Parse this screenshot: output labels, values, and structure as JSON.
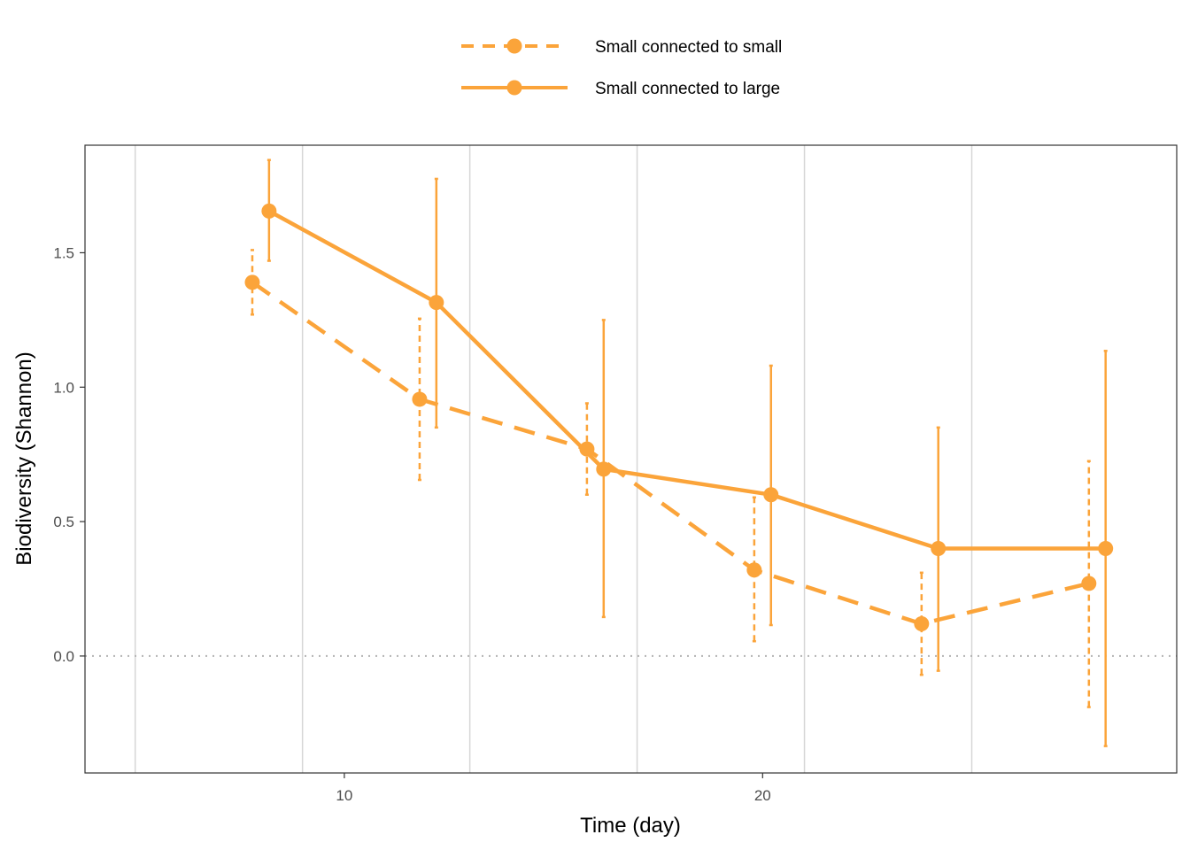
{
  "chart_data": {
    "type": "line",
    "xlabel": "Time (day)",
    "ylabel": "Biodiversity (Shannon)",
    "xlim": [
      3.8,
      29.9
    ],
    "ylim": [
      -0.435,
      1.9
    ],
    "x_ticks": [
      {
        "value": 10,
        "label": "10"
      },
      {
        "value": 20,
        "label": "20"
      }
    ],
    "y_ticks": [
      {
        "value": 0.0,
        "label": "0.0"
      },
      {
        "value": 0.5,
        "label": "0.5"
      },
      {
        "value": 1.0,
        "label": "1.0"
      },
      {
        "value": 1.5,
        "label": "1.5"
      }
    ],
    "vertical_gridlines_at": [
      5,
      9,
      13,
      17,
      21,
      25
    ],
    "reference_line": {
      "y": 0,
      "style": "dotted"
    },
    "legend_position": "top",
    "color": "#FBA43A",
    "series": [
      {
        "name": "Small connected to small",
        "line_style": "dashed",
        "points": [
          {
            "x": 7.8,
            "y": 1.39,
            "lo": 1.27,
            "hi": 1.51
          },
          {
            "x": 11.8,
            "y": 0.955,
            "lo": 0.655,
            "hi": 1.255
          },
          {
            "x": 15.8,
            "y": 0.77,
            "lo": 0.6,
            "hi": 0.94
          },
          {
            "x": 19.8,
            "y": 0.32,
            "lo": 0.055,
            "hi": 0.59
          },
          {
            "x": 23.8,
            "y": 0.12,
            "lo": -0.07,
            "hi": 0.31
          },
          {
            "x": 27.8,
            "y": 0.27,
            "lo": -0.19,
            "hi": 0.725
          }
        ]
      },
      {
        "name": "Small connected to large",
        "line_style": "solid",
        "points": [
          {
            "x": 8.2,
            "y": 1.655,
            "lo": 1.47,
            "hi": 1.845
          },
          {
            "x": 12.2,
            "y": 1.315,
            "lo": 0.85,
            "hi": 1.775
          },
          {
            "x": 16.2,
            "y": 0.695,
            "lo": 0.145,
            "hi": 1.25
          },
          {
            "x": 20.2,
            "y": 0.6,
            "lo": 0.115,
            "hi": 1.08
          },
          {
            "x": 24.2,
            "y": 0.4,
            "lo": -0.055,
            "hi": 0.85
          },
          {
            "x": 28.2,
            "y": 0.4,
            "lo": -0.335,
            "hi": 1.135
          }
        ]
      }
    ]
  }
}
